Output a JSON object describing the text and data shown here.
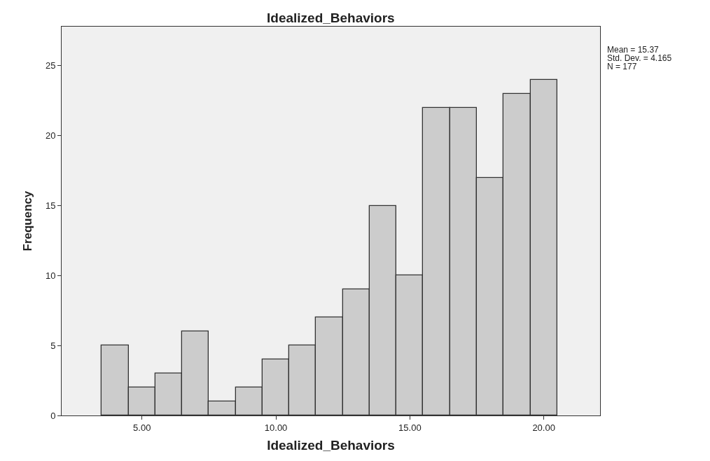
{
  "chart_data": {
    "type": "histogram",
    "title": "Idealized_Behaviors",
    "xlabel": "Idealized_Behaviors",
    "ylabel": "Frequency",
    "bins": [
      3.5,
      4.5,
      5.5,
      6.5,
      7.5,
      8.5,
      9.5,
      10.5,
      11.5,
      12.5,
      13.5,
      14.5,
      15.5,
      16.5,
      17.5,
      18.5,
      19.5,
      20.5
    ],
    "values": [
      5,
      2,
      3,
      6,
      1,
      2,
      4,
      5,
      7,
      9,
      15,
      10,
      22,
      22,
      17,
      23,
      24
    ],
    "color": "#cccccc",
    "xlim": [
      2.0,
      22.1
    ],
    "xticks": [
      {
        "value": 5,
        "label": "5.00"
      },
      {
        "value": 10,
        "label": "10.00"
      },
      {
        "value": 15,
        "label": "15.00"
      },
      {
        "value": 20,
        "label": "20.00"
      }
    ],
    "ylim": [
      0,
      27.8
    ],
    "yticks": [
      0,
      5,
      10,
      15,
      20,
      25
    ],
    "annotations": [
      "Mean = 15.37",
      "Std. Dev. = 4.165",
      "N = 177"
    ]
  }
}
